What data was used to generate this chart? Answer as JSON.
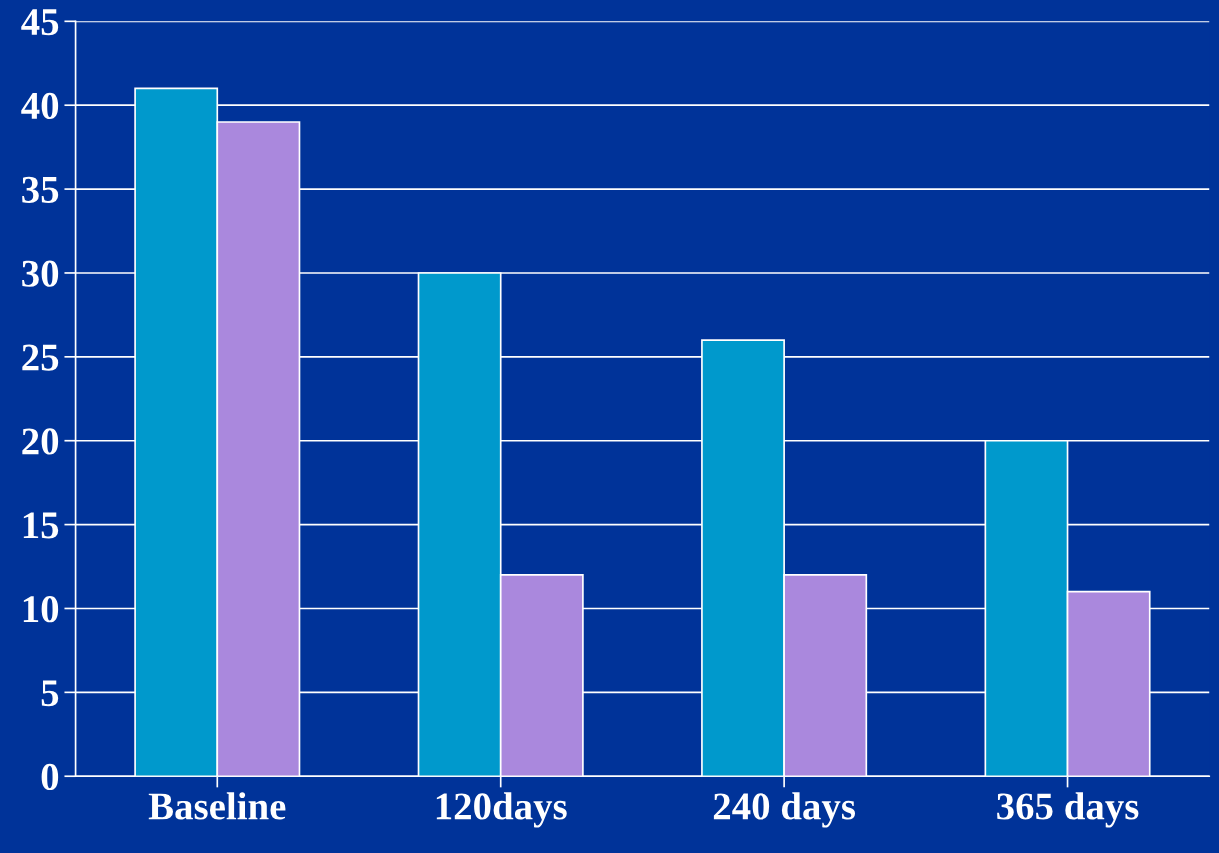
{
  "chart_data": {
    "type": "bar",
    "categories": [
      "Baseline",
      "120days",
      "240 days",
      "365 days"
    ],
    "series": [
      {
        "color": "#0099cc",
        "values": [
          41,
          30,
          26,
          20
        ]
      },
      {
        "color": "#aa88dd",
        "values": [
          39,
          12,
          12,
          11
        ]
      }
    ],
    "ylim": [
      0,
      45
    ],
    "yticks": [
      0,
      5,
      10,
      15,
      20,
      25,
      30,
      35,
      40,
      45
    ],
    "grid": "y"
  }
}
